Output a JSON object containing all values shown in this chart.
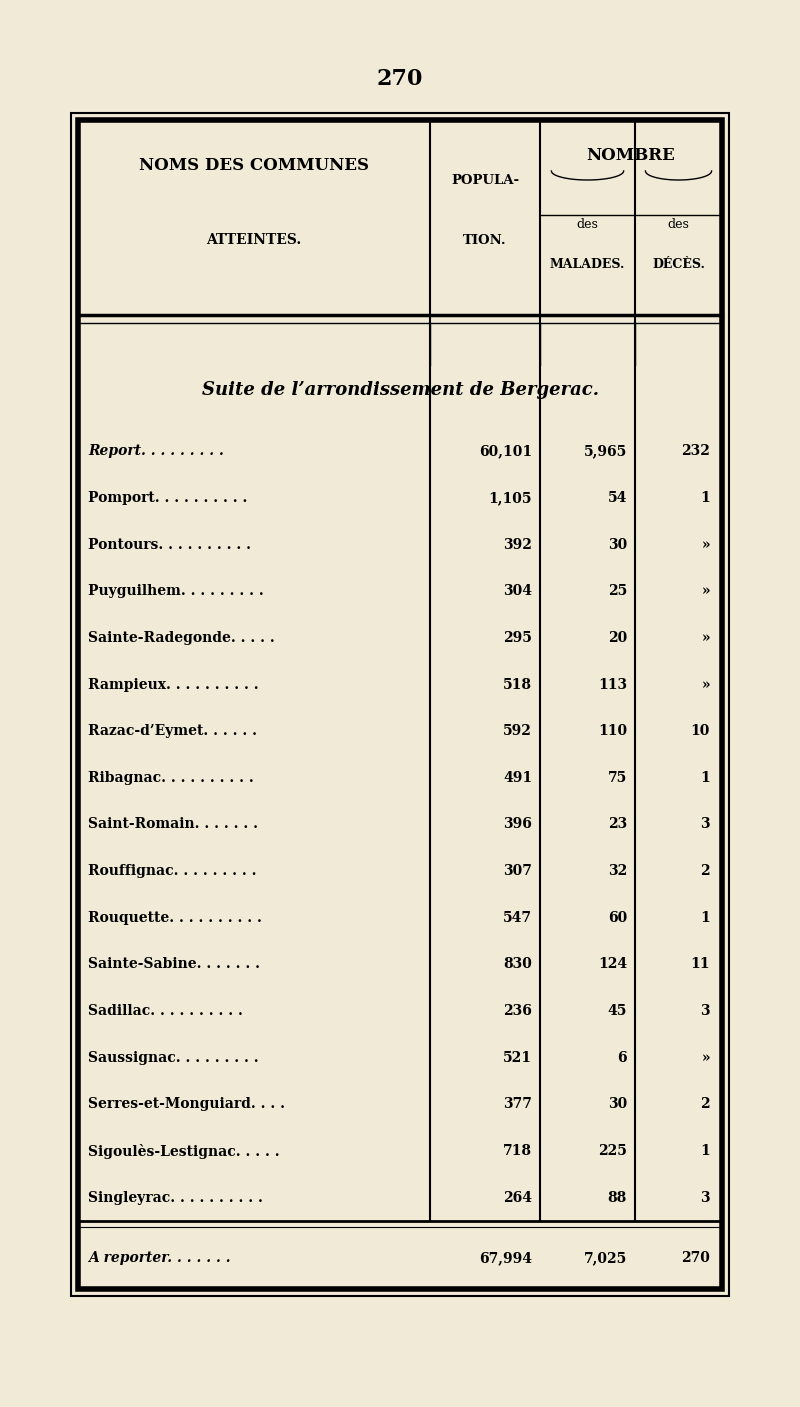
{
  "page_number": "270",
  "bg_color": "#f0ead6",
  "header_col1_line1": "NOMS DES COMMUNES",
  "header_col1_line2": "ATTEINTES.",
  "header_col2_line1": "POPULA-",
  "header_col2_line2": "TION.",
  "header_nombre": "NOMBRE",
  "header_des_malades": "des",
  "header_malades": "MALADES.",
  "header_des_deces": "des",
  "header_deces": "DÉCÈS.",
  "section_title": "Suite de l’arrondissement de Bergerac.",
  "rows": [
    {
      "name": "Report. . . . . . . . .",
      "italic": true,
      "population": "60,101",
      "malades": "5,965",
      "deces": "232"
    },
    {
      "name": "Pomport. . . . . . . . . .",
      "italic": false,
      "population": "1,105",
      "malades": "54",
      "deces": "1"
    },
    {
      "name": "Pontours. . . . . . . . . .",
      "italic": false,
      "population": "392",
      "malades": "30",
      "deces": "»"
    },
    {
      "name": "Puyguilhem. . . . . . . . .",
      "italic": false,
      "population": "304",
      "malades": "25",
      "deces": "»"
    },
    {
      "name": "Sainte-Radegonde. . . . .",
      "italic": false,
      "population": "295",
      "malades": "20",
      "deces": "»"
    },
    {
      "name": "Rampieux. . . . . . . . . .",
      "italic": false,
      "population": "518",
      "malades": "113",
      "deces": "»"
    },
    {
      "name": "Razac-d’Eymet. . . . . .",
      "italic": false,
      "population": "592",
      "malades": "110",
      "deces": "10"
    },
    {
      "name": "Ribagnac. . . . . . . . . .",
      "italic": false,
      "population": "491",
      "malades": "75",
      "deces": "1"
    },
    {
      "name": "Saint-Romain. . . . . . .",
      "italic": false,
      "population": "396",
      "malades": "23",
      "deces": "3"
    },
    {
      "name": "Rouffignac. . . . . . . . .",
      "italic": false,
      "population": "307",
      "malades": "32",
      "deces": "2"
    },
    {
      "name": "Rouquette. . . . . . . . . .",
      "italic": false,
      "population": "547",
      "malades": "60",
      "deces": "1"
    },
    {
      "name": "Sainte-Sabine. . . . . . .",
      "italic": false,
      "population": "830",
      "malades": "124",
      "deces": "11"
    },
    {
      "name": "Sadillac. . . . . . . . . .",
      "italic": false,
      "population": "236",
      "malades": "45",
      "deces": "3"
    },
    {
      "name": "Saussignac. . . . . . . . .",
      "italic": false,
      "population": "521",
      "malades": "6",
      "deces": "»"
    },
    {
      "name": "Serres-et-Monguiard. . . .",
      "italic": false,
      "population": "377",
      "malades": "30",
      "deces": "2"
    },
    {
      "name": "Sigoulès-Lestignac. . . . .",
      "italic": false,
      "population": "718",
      "malades": "225",
      "deces": "1"
    },
    {
      "name": "Singleyrac. . . . . . . . . .",
      "italic": false,
      "population": "264",
      "malades": "88",
      "deces": "3"
    }
  ],
  "footer_row": {
    "name": "A reporter. . . . . . .",
    "italic": true,
    "population": "67,994",
    "malades": "7,025",
    "deces": "270"
  }
}
